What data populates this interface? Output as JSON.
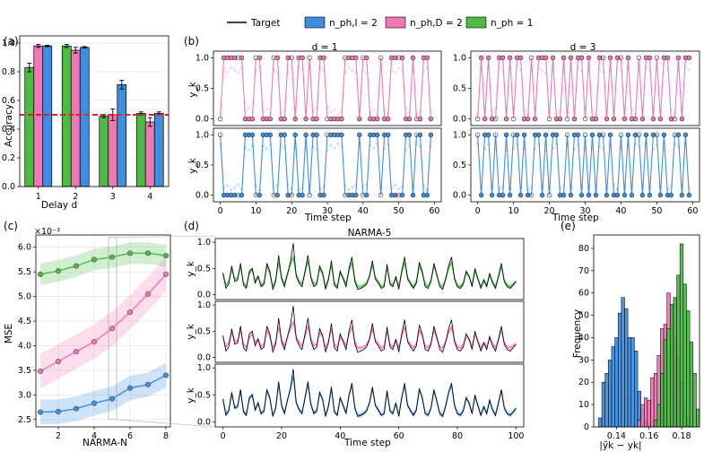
{
  "legend": {
    "entries": [
      {
        "label": "Target",
        "color": "#000000",
        "kind": "line"
      },
      {
        "label": "n_ph,I = 2",
        "color": "#3b8ee0",
        "kind": "patch"
      },
      {
        "label": "n_ph,D = 2",
        "color": "#ef77b3",
        "kind": "patch"
      },
      {
        "label": "n_ph = 1",
        "color": "#4bbb45",
        "kind": "patch"
      }
    ]
  },
  "colors": {
    "green": "#4bbb45",
    "pink": "#ef77b3",
    "blue": "#3b8ee0",
    "target": "#000000",
    "threshold": "#d62728"
  },
  "panel_labels": {
    "a": "(a)",
    "b": "(b)",
    "c": "(c)",
    "d": "(d)",
    "e": "(e)"
  },
  "chart_data": [
    {
      "id": "a",
      "type": "bar",
      "title": "",
      "xlabel": "Delay d",
      "ylabel": "Accuracy",
      "categories": [
        "1",
        "2",
        "3",
        "4"
      ],
      "ylim": [
        0,
        1.05
      ],
      "yticks": [
        "0.0",
        "0.2",
        "0.4",
        "0.6",
        "0.8",
        "1.0"
      ],
      "threshold": 0.5,
      "series": [
        {
          "name": "n_ph = 1",
          "color": "#4bbb45",
          "values": [
            0.83,
            0.98,
            0.49,
            0.51
          ],
          "errors": [
            0.03,
            0.01,
            0.01,
            0.01
          ]
        },
        {
          "name": "n_ph,D = 2",
          "color": "#ef77b3",
          "values": [
            0.98,
            0.95,
            0.5,
            0.45
          ],
          "errors": [
            0.01,
            0.02,
            0.04,
            0.03
          ]
        },
        {
          "name": "n_ph,I = 2",
          "color": "#3b8ee0",
          "values": [
            0.98,
            0.97,
            0.71,
            0.51
          ],
          "errors": [
            0.005,
            0.005,
            0.03,
            0.01
          ]
        }
      ]
    },
    {
      "id": "b",
      "type": "line",
      "xlabel": "Time step",
      "ylabel": "y_k",
      "titles": [
        "d = 1",
        "d = 3"
      ],
      "xticks": [
        "0",
        "10",
        "20",
        "30",
        "40",
        "50",
        "60"
      ],
      "yticks": [
        "0.0",
        "0.5",
        "1.0"
      ],
      "d1_pink": [
        0,
        1,
        1,
        1,
        1,
        1,
        1,
        0,
        0,
        0,
        1,
        1,
        0,
        0,
        0,
        1,
        1,
        0,
        0,
        1,
        1,
        0,
        1,
        1,
        0,
        1,
        0,
        0,
        1,
        1,
        0,
        0,
        0,
        0,
        0,
        1,
        1,
        1,
        1,
        0,
        1,
        1,
        0,
        0,
        0,
        1,
        0,
        0,
        1,
        1,
        1,
        1,
        0,
        0,
        1,
        0,
        0,
        1,
        1,
        0
      ],
      "d1_blue": [
        1,
        0,
        0,
        0,
        0,
        0,
        0,
        1,
        1,
        1,
        0,
        0,
        1,
        1,
        1,
        0,
        0,
        1,
        1,
        0,
        0,
        1,
        0,
        0,
        1,
        0,
        1,
        1,
        0,
        0,
        1,
        1,
        1,
        1,
        1,
        0,
        0,
        0,
        0,
        1,
        0,
        0,
        1,
        1,
        1,
        0,
        1,
        1,
        0,
        0,
        0,
        0,
        1,
        1,
        0,
        1,
        1,
        0,
        0,
        1
      ],
      "d3_pink": [
        0,
        1,
        0,
        1,
        0,
        0,
        1,
        1,
        0,
        1,
        0,
        1,
        1,
        0,
        0,
        1,
        0,
        1,
        1,
        1,
        0,
        1,
        0,
        0,
        1,
        0,
        1,
        0,
        1,
        1,
        0,
        1,
        0,
        0,
        1,
        1,
        0,
        1,
        0,
        1,
        1,
        0,
        1,
        0,
        0,
        1,
        0,
        1,
        1,
        0,
        1,
        0,
        1,
        1,
        0,
        0,
        1,
        0,
        1,
        1
      ],
      "d3_blue": [
        1,
        0,
        1,
        1,
        0,
        1,
        0,
        0,
        1,
        0,
        1,
        1,
        0,
        1,
        0,
        0,
        1,
        1,
        0,
        1,
        0,
        1,
        1,
        0,
        0,
        1,
        0,
        1,
        1,
        0,
        1,
        0,
        1,
        0,
        1,
        1,
        0,
        1,
        0,
        0,
        1,
        0,
        1,
        0,
        1,
        1,
        0,
        1,
        0,
        1,
        1,
        0,
        1,
        0,
        0,
        1,
        1,
        0,
        1,
        0
      ]
    },
    {
      "id": "c",
      "type": "line",
      "xlabel": "NARMA-N",
      "ylabel": "MSE",
      "scale": "×10⁻³",
      "x": [
        1,
        2,
        3,
        4,
        5,
        6,
        7,
        8
      ],
      "xticks": [
        "2",
        "4",
        "6",
        "8"
      ],
      "yticks": [
        "2.5",
        "3.0",
        "3.5",
        "4.0",
        "4.5",
        "5.0",
        "5.5",
        "6.0"
      ],
      "ylim": [
        2.35,
        6.25
      ],
      "series": [
        {
          "name": "n_ph = 1",
          "color": "#4bbb45",
          "values": [
            5.45,
            5.52,
            5.62,
            5.75,
            5.8,
            5.88,
            5.88,
            5.83
          ],
          "band": 0.22
        },
        {
          "name": "n_ph,D = 2",
          "color": "#ef77b3",
          "values": [
            3.48,
            3.68,
            3.88,
            4.08,
            4.35,
            4.68,
            5.05,
            5.45
          ],
          "band": 0.35
        },
        {
          "name": "n_ph,I = 2",
          "color": "#3b8ee0",
          "values": [
            2.65,
            2.66,
            2.72,
            2.83,
            2.92,
            3.14,
            3.21,
            3.4
          ],
          "band": 0.25
        }
      ]
    },
    {
      "id": "d",
      "type": "line",
      "title": "NARMA-5",
      "xlabel": "Time step",
      "ylabel": "y_k",
      "xticks": [
        "0",
        "20",
        "40",
        "60",
        "80",
        "100"
      ],
      "yticks": [
        "0.0",
        "0.5",
        "1.0"
      ],
      "target": [
        0.42,
        0.12,
        0.2,
        0.55,
        0.25,
        0.28,
        0.6,
        0.18,
        0.12,
        0.45,
        0.5,
        0.22,
        0.35,
        0.15,
        0.2,
        0.6,
        0.45,
        0.1,
        0.25,
        0.75,
        0.3,
        0.15,
        0.4,
        0.62,
        0.98,
        0.35,
        0.22,
        0.15,
        0.45,
        0.75,
        0.32,
        0.15,
        0.2,
        0.55,
        0.42,
        0.1,
        0.28,
        0.65,
        0.18,
        0.12,
        0.45,
        0.3,
        0.15,
        0.5,
        0.72,
        0.25,
        0.1,
        0.12,
        0.15,
        0.2,
        0.35,
        0.65,
        0.3,
        0.22,
        0.12,
        0.15,
        0.58,
        0.2,
        0.15,
        0.35,
        0.1,
        0.45,
        0.72,
        0.3,
        0.2,
        0.12,
        0.22,
        0.62,
        0.45,
        0.15,
        0.12,
        0.25,
        0.6,
        0.38,
        0.15,
        0.1,
        0.3,
        0.55,
        0.72,
        0.3,
        0.15,
        0.12,
        0.2,
        0.45,
        0.35,
        0.15,
        0.5,
        0.3,
        0.12,
        0.28,
        0.15,
        0.4,
        0.22,
        0.12,
        0.35,
        0.6,
        0.25,
        0.15,
        0.12,
        0.18,
        0.25
      ],
      "series": [
        {
          "name": "n_ph = 1",
          "color": "#4bbb45",
          "values": [
            0.4,
            0.18,
            0.25,
            0.5,
            0.3,
            0.3,
            0.55,
            0.22,
            0.15,
            0.4,
            0.48,
            0.25,
            0.35,
            0.18,
            0.22,
            0.55,
            0.4,
            0.15,
            0.28,
            0.62,
            0.32,
            0.2,
            0.38,
            0.58,
            0.72,
            0.38,
            0.25,
            0.2,
            0.42,
            0.65,
            0.35,
            0.2,
            0.22,
            0.5,
            0.4,
            0.15,
            0.3,
            0.58,
            0.22,
            0.15,
            0.42,
            0.32,
            0.2,
            0.45,
            0.62,
            0.28,
            0.15,
            0.15,
            0.18,
            0.22,
            0.35,
            0.58,
            0.32,
            0.25,
            0.15,
            0.18,
            0.52,
            0.22,
            0.18,
            0.32,
            0.15,
            0.42,
            0.62,
            0.32,
            0.22,
            0.15,
            0.25,
            0.55,
            0.42,
            0.2,
            0.15,
            0.28,
            0.55,
            0.36,
            0.18,
            0.15,
            0.3,
            0.5,
            0.62,
            0.32,
            0.18,
            0.15,
            0.22,
            0.42,
            0.35,
            0.18,
            0.46,
            0.3,
            0.15,
            0.28,
            0.18,
            0.38,
            0.24,
            0.15,
            0.34,
            0.54,
            0.27,
            0.18,
            0.15,
            0.2,
            0.25
          ]
        },
        {
          "name": "n_ph,D = 2",
          "color": "#ef77b3",
          "values": [
            0.38,
            0.2,
            0.28,
            0.48,
            0.32,
            0.3,
            0.52,
            0.25,
            0.18,
            0.38,
            0.45,
            0.28,
            0.35,
            0.2,
            0.25,
            0.52,
            0.4,
            0.18,
            0.3,
            0.58,
            0.34,
            0.22,
            0.38,
            0.55,
            0.68,
            0.4,
            0.28,
            0.22,
            0.4,
            0.6,
            0.36,
            0.22,
            0.25,
            0.48,
            0.4,
            0.18,
            0.3,
            0.55,
            0.25,
            0.18,
            0.4,
            0.33,
            0.22,
            0.44,
            0.58,
            0.3,
            0.18,
            0.18,
            0.2,
            0.24,
            0.35,
            0.55,
            0.33,
            0.26,
            0.18,
            0.2,
            0.5,
            0.24,
            0.2,
            0.32,
            0.18,
            0.4,
            0.58,
            0.33,
            0.24,
            0.18,
            0.26,
            0.52,
            0.42,
            0.22,
            0.18,
            0.28,
            0.52,
            0.36,
            0.2,
            0.18,
            0.3,
            0.48,
            0.58,
            0.33,
            0.2,
            0.18,
            0.24,
            0.4,
            0.35,
            0.2,
            0.45,
            0.3,
            0.18,
            0.28,
            0.2,
            0.37,
            0.25,
            0.18,
            0.33,
            0.52,
            0.28,
            0.2,
            0.18,
            0.22,
            0.26
          ]
        },
        {
          "name": "n_ph,I = 2",
          "color": "#3b8ee0",
          "values": [
            0.42,
            0.15,
            0.22,
            0.52,
            0.27,
            0.28,
            0.58,
            0.2,
            0.14,
            0.43,
            0.5,
            0.23,
            0.35,
            0.16,
            0.21,
            0.58,
            0.43,
            0.12,
            0.26,
            0.7,
            0.31,
            0.17,
            0.4,
            0.6,
            0.85,
            0.36,
            0.23,
            0.17,
            0.44,
            0.7,
            0.33,
            0.17,
            0.21,
            0.53,
            0.42,
            0.12,
            0.29,
            0.62,
            0.2,
            0.13,
            0.44,
            0.31,
            0.17,
            0.48,
            0.68,
            0.26,
            0.12,
            0.13,
            0.16,
            0.21,
            0.35,
            0.62,
            0.31,
            0.23,
            0.13,
            0.16,
            0.56,
            0.21,
            0.16,
            0.34,
            0.12,
            0.44,
            0.68,
            0.31,
            0.21,
            0.13,
            0.23,
            0.6,
            0.44,
            0.16,
            0.13,
            0.26,
            0.58,
            0.37,
            0.16,
            0.12,
            0.3,
            0.53,
            0.68,
            0.31,
            0.16,
            0.13,
            0.21,
            0.44,
            0.35,
            0.16,
            0.48,
            0.3,
            0.13,
            0.28,
            0.16,
            0.4,
            0.22,
            0.13,
            0.35,
            0.58,
            0.26,
            0.16,
            0.13,
            0.18,
            0.25
          ]
        }
      ]
    },
    {
      "id": "e",
      "type": "bar",
      "xlabel": "|ỹk − yk|",
      "ylabel": "Frequency",
      "xticks": [
        "0.14",
        "0.16",
        "0.18"
      ],
      "yticks": [
        "0",
        "10",
        "20",
        "30",
        "40",
        "50",
        "60",
        "70",
        "80"
      ],
      "bin_width": 0.002,
      "series": [
        {
          "name": "n_ph,I = 2",
          "color": "#3b8ee0",
          "start": 0.129,
          "counts": [
            4,
            20,
            24,
            30,
            36,
            40,
            51,
            58,
            53,
            40,
            40,
            34,
            16,
            8,
            3,
            1
          ]
        },
        {
          "name": "n_ph,D = 2",
          "color": "#ef77b3",
          "start": 0.153,
          "counts": [
            3,
            10,
            13,
            12,
            22,
            24,
            32,
            44,
            46,
            60,
            54,
            40,
            32,
            20,
            12,
            4
          ]
        },
        {
          "name": "n_ph = 1",
          "color": "#4bbb45",
          "start": 0.163,
          "counts": [
            3,
            10,
            24,
            39,
            44,
            55,
            58,
            68,
            82,
            64,
            52,
            38,
            24,
            8
          ]
        }
      ]
    }
  ]
}
